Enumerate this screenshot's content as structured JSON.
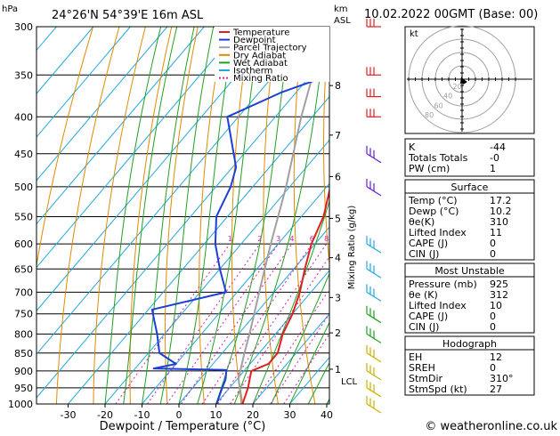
{
  "header": {
    "pressure_unit": "hPa",
    "location": "24°26'N 54°39'E 16m ASL",
    "km_unit": "km",
    "asl_label": "ASL",
    "datetime": "10.02.2022 00GMT (Base: 00)"
  },
  "footer": {
    "credit": "© weatheronline.co.uk"
  },
  "chart_data": {
    "type": "skew-t",
    "xlabel": "Dewpoint / Temperature (°C)",
    "mixing_ratio_label": "Mixing Ratio (g/kg)",
    "temperature_ticks": [
      -30,
      -20,
      -10,
      0,
      10,
      20,
      30,
      40
    ],
    "pressure_levels": [
      300,
      350,
      400,
      450,
      500,
      550,
      600,
      650,
      700,
      750,
      800,
      850,
      900,
      950,
      1000
    ],
    "altitude_km": [
      {
        "label": "8",
        "p": 362
      },
      {
        "label": "7",
        "p": 424
      },
      {
        "label": "6",
        "p": 484
      },
      {
        "label": "5",
        "p": 553
      },
      {
        "label": "4",
        "p": 627
      },
      {
        "label": "3",
        "p": 712
      },
      {
        "label": "2",
        "p": 797
      },
      {
        "label": "1",
        "p": 895
      }
    ],
    "lcl_label": "LCL",
    "lcl_p": 900,
    "mixing_ratio_values": [
      "1",
      "2",
      "3",
      "4",
      "6",
      "8",
      "10",
      "15",
      "20",
      "25"
    ],
    "legend": [
      {
        "name": "Temperature",
        "color": "#e02020"
      },
      {
        "name": "Dewpoint",
        "color": "#1c3fd8"
      },
      {
        "name": "Parcel Trajectory",
        "color": "#a0a0a0"
      },
      {
        "name": "Dry Adiabat",
        "color": "#e08a00"
      },
      {
        "name": "Wet Adiabat",
        "color": "#22a022"
      },
      {
        "name": "Isotherm",
        "color": "#22a8e0"
      },
      {
        "name": "Mixing Ratio",
        "color": "#d020b0"
      }
    ],
    "temperature_profile": [
      {
        "p": 300,
        "t": -31
      },
      {
        "p": 330,
        "t": -27
      },
      {
        "p": 350,
        "t": -22
      },
      {
        "p": 380,
        "t": -18
      },
      {
        "p": 400,
        "t": -20
      },
      {
        "p": 450,
        "t": -14
      },
      {
        "p": 500,
        "t": -9
      },
      {
        "p": 550,
        "t": -4
      },
      {
        "p": 600,
        "t": -1
      },
      {
        "p": 650,
        "t": 3
      },
      {
        "p": 700,
        "t": 7
      },
      {
        "p": 750,
        "t": 10
      },
      {
        "p": 800,
        "t": 12
      },
      {
        "p": 850,
        "t": 15
      },
      {
        "p": 880,
        "t": 15
      },
      {
        "p": 900,
        "t": 12
      },
      {
        "p": 925,
        "t": 13.5
      },
      {
        "p": 950,
        "t": 15
      },
      {
        "p": 1000,
        "t": 17.2
      }
    ],
    "dewpoint_profile": [
      {
        "p": 300,
        "t": -43
      },
      {
        "p": 340,
        "t": -30
      },
      {
        "p": 370,
        "t": -44
      },
      {
        "p": 400,
        "t": -53
      },
      {
        "p": 470,
        "t": -39
      },
      {
        "p": 500,
        "t": -36
      },
      {
        "p": 550,
        "t": -33
      },
      {
        "p": 600,
        "t": -27
      },
      {
        "p": 650,
        "t": -20
      },
      {
        "p": 700,
        "t": -13
      },
      {
        "p": 740,
        "t": -29
      },
      {
        "p": 800,
        "t": -22
      },
      {
        "p": 850,
        "t": -17
      },
      {
        "p": 880,
        "t": -10
      },
      {
        "p": 893,
        "t": -15
      },
      {
        "p": 897,
        "t": 5
      },
      {
        "p": 925,
        "t": 7
      },
      {
        "p": 950,
        "t": 8
      },
      {
        "p": 1000,
        "t": 10.2
      }
    ],
    "parcel_profile": [
      {
        "p": 1000,
        "t": 17.2
      },
      {
        "p": 925,
        "t": 10.5
      },
      {
        "p": 900,
        "t": 9
      },
      {
        "p": 850,
        "t": 6
      },
      {
        "p": 800,
        "t": 3
      },
      {
        "p": 700,
        "t": -4
      },
      {
        "p": 600,
        "t": -12
      },
      {
        "p": 500,
        "t": -21
      },
      {
        "p": 400,
        "t": -33
      },
      {
        "p": 300,
        "t": -47
      }
    ],
    "wind_barbs_p": [
      300,
      350,
      375,
      400,
      450,
      500,
      600,
      650,
      700,
      750,
      800,
      850,
      900,
      950,
      1000
    ]
  },
  "hodograph": {
    "unit_label": "kt",
    "ring_labels": [
      "20",
      "40",
      "60",
      "80"
    ]
  },
  "indices": {
    "top": [
      {
        "label": "K",
        "value": "-44"
      },
      {
        "label": "Totals Totals",
        "value": "-0"
      },
      {
        "label": "PW (cm)",
        "value": "1"
      }
    ],
    "surface": {
      "title": "Surface",
      "rows": [
        {
          "label": "Temp (°C)",
          "value": "17.2"
        },
        {
          "label": "Dewp (°C)",
          "value": "10.2"
        },
        {
          "label": "θe(K)",
          "value": "310"
        },
        {
          "label": "Lifted Index",
          "value": "11"
        },
        {
          "label": "CAPE (J)",
          "value": "0"
        },
        {
          "label": "CIN (J)",
          "value": "0"
        }
      ]
    },
    "most_unstable": {
      "title": "Most Unstable",
      "rows": [
        {
          "label": "Pressure (mb)",
          "value": "925"
        },
        {
          "label": "θe (K)",
          "value": "312"
        },
        {
          "label": "Lifted Index",
          "value": "10"
        },
        {
          "label": "CAPE (J)",
          "value": "0"
        },
        {
          "label": "CIN (J)",
          "value": "0"
        }
      ]
    },
    "hodograph": {
      "title": "Hodograph",
      "rows": [
        {
          "label": "EH",
          "value": "12"
        },
        {
          "label": "SREH",
          "value": "0"
        },
        {
          "label": "StmDir",
          "value": "310°"
        },
        {
          "label": "StmSpd (kt)",
          "value": "27"
        }
      ]
    }
  }
}
